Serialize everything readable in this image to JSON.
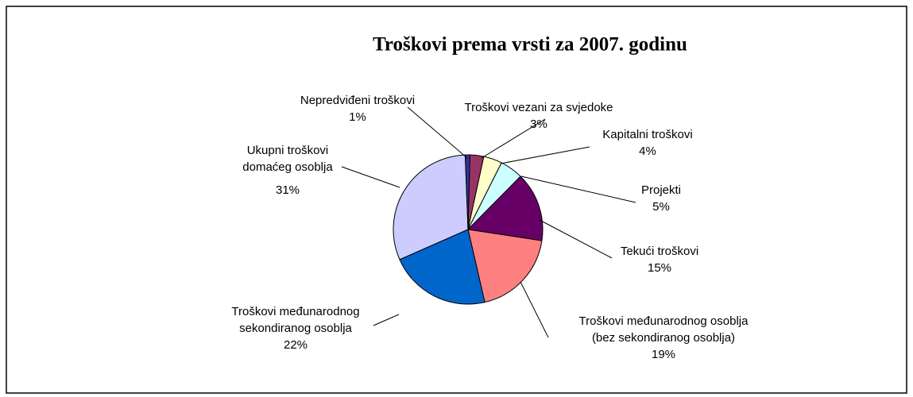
{
  "chart_data": {
    "type": "pie",
    "title": "Troškovi prema vrsti za 2007. godinu",
    "categories": [
      [
        "Troškovi vezani za svjedoke"
      ],
      [
        "Kapitalni troškovi"
      ],
      [
        "Projekti"
      ],
      [
        "Tekući troškovi"
      ],
      [
        "Troškovi međunarodnog osoblja",
        "(bez sekondiranog osoblja)"
      ],
      [
        "Troškovi međunarodnog",
        "sekondiranog osoblja"
      ],
      [
        "Ukupni troškovi",
        "domaćeg osoblja"
      ],
      [
        "Nepredviđeni troškovi"
      ]
    ],
    "values": [
      3,
      4,
      5,
      15,
      19,
      22,
      31,
      1
    ],
    "value_labels": [
      "3%",
      "4%",
      "5%",
      "15%",
      "19%",
      "22%",
      "31%",
      "1%"
    ],
    "colors": [
      "#993366",
      "#ffffcc",
      "#ccffff",
      "#660066",
      "#ff8080",
      "#0066cc",
      "#ccccff",
      "#333399"
    ]
  }
}
